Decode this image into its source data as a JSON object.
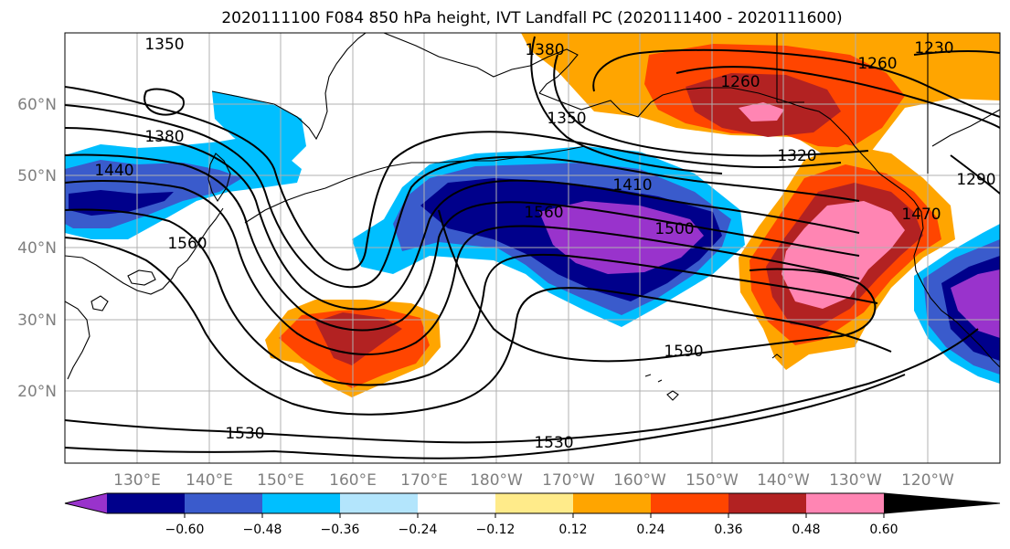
{
  "title": "2020111100 F084 850 hPa height, IVT Landfall PC (2020111400 - 2020111600)",
  "lat_labels": [
    "60°N",
    "50°N",
    "40°N",
    "30°N",
    "20°N"
  ],
  "lon_labels": [
    "130°E",
    "140°E",
    "150°E",
    "160°E",
    "170°E",
    "180°W",
    "170°W",
    "160°W",
    "150°W",
    "140°W",
    "130°W",
    "120°W"
  ],
  "contour_labels": [
    "1350",
    "1380",
    "1440",
    "1560",
    "1350",
    "1380",
    "1410",
    "1560",
    "1500",
    "1260",
    "1260",
    "1230",
    "1320",
    "1290",
    "1470",
    "1590",
    "1530",
    "1530"
  ],
  "colorbar": {
    "colors": [
      "#9933cc",
      "#00008b",
      "#3a5bcc",
      "#00bfff",
      "#b3e5fc",
      "#ffffff",
      "#ffeb8a",
      "#ffa500",
      "#ff4500",
      "#b22222",
      "#ff85b3"
    ],
    "tick_labels": [
      "−0.60",
      "−0.48",
      "−0.36",
      "−0.24",
      "−0.12",
      "0.12",
      "0.24",
      "0.36",
      "0.48",
      "0.60"
    ]
  }
}
